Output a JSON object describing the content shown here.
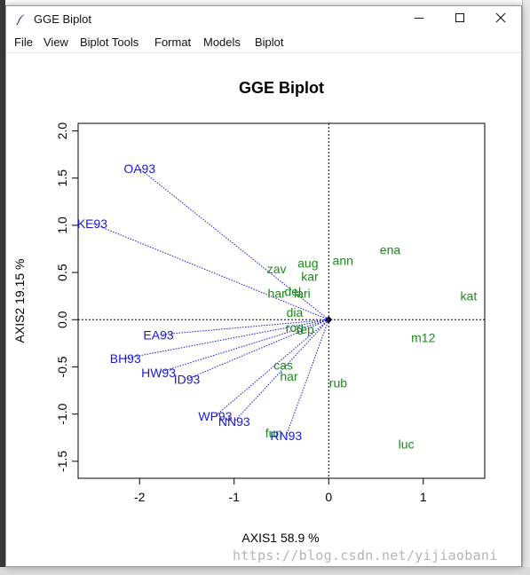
{
  "window": {
    "title": "GGE Biplot"
  },
  "menu": [
    "File",
    "View",
    "Biplot Tools",
    "Format",
    "Models",
    "Biplot"
  ],
  "watermark": "https://blog.csdn.net/yijiaobani",
  "chart_data": {
    "type": "scatter",
    "title": "GGE Biplot",
    "xlabel": "AXIS1 58.9 %",
    "ylabel": "AXIS2 19.15 %",
    "xlim": [
      -2.65,
      1.65
    ],
    "ylim": [
      -1.68,
      2.08
    ],
    "xticks": [
      -2,
      -1,
      0,
      1
    ],
    "xtick_labels": [
      "-2",
      "-1",
      "0",
      "1"
    ],
    "yticks": [
      -1.5,
      -1.0,
      -0.5,
      0.0,
      0.5,
      1.0,
      1.5,
      2.0
    ],
    "ytick_labels": [
      "-1.5",
      "-1.0",
      "-0.5",
      "0.0",
      "0.5",
      "1.0",
      "1.5",
      "2.0"
    ],
    "origin_lines": true,
    "colors": {
      "environments": "#1a1ad6",
      "genotypes": "#1a8a1a"
    },
    "environments": [
      {
        "label": "OA93",
        "x": -2.0,
        "y": 1.6
      },
      {
        "label": "KE93",
        "x": -2.5,
        "y": 1.02
      },
      {
        "label": "EA93",
        "x": -1.8,
        "y": -0.16
      },
      {
        "label": "BH93",
        "x": -2.15,
        "y": -0.41
      },
      {
        "label": "HW93",
        "x": -1.8,
        "y": -0.56
      },
      {
        "label": "ID93",
        "x": -1.5,
        "y": -0.63
      },
      {
        "label": "WP93",
        "x": -1.2,
        "y": -1.02
      },
      {
        "label": "NN93",
        "x": -1.0,
        "y": -1.08
      },
      {
        "label": "RN93",
        "x": -0.45,
        "y": -1.23
      }
    ],
    "genotypes": [
      {
        "label": "ann",
        "x": 0.15,
        "y": 0.63
      },
      {
        "label": "ena",
        "x": 0.65,
        "y": 0.74
      },
      {
        "label": "aug",
        "x": -0.22,
        "y": 0.6
      },
      {
        "label": "zav",
        "x": -0.55,
        "y": 0.54
      },
      {
        "label": "kar",
        "x": -0.2,
        "y": 0.46
      },
      {
        "label": "del",
        "x": -0.38,
        "y": 0.3
      },
      {
        "label": "har",
        "x": -0.55,
        "y": 0.28
      },
      {
        "label": "lari",
        "x": -0.28,
        "y": 0.28
      },
      {
        "label": "kat",
        "x": 1.48,
        "y": 0.25
      },
      {
        "label": "dia",
        "x": -0.36,
        "y": 0.08
      },
      {
        "label": "rog",
        "x": -0.36,
        "y": -0.08
      },
      {
        "label": "rep",
        "x": -0.25,
        "y": -0.1
      },
      {
        "label": "m12",
        "x": 1.0,
        "y": -0.19
      },
      {
        "label": "cas",
        "x": -0.48,
        "y": -0.48
      },
      {
        "label": "har",
        "x": -0.42,
        "y": -0.6
      },
      {
        "label": "rub",
        "x": 0.1,
        "y": -0.67
      },
      {
        "label": "fun",
        "x": -0.58,
        "y": -1.2
      },
      {
        "label": "luc",
        "x": 0.82,
        "y": -1.32
      }
    ]
  }
}
